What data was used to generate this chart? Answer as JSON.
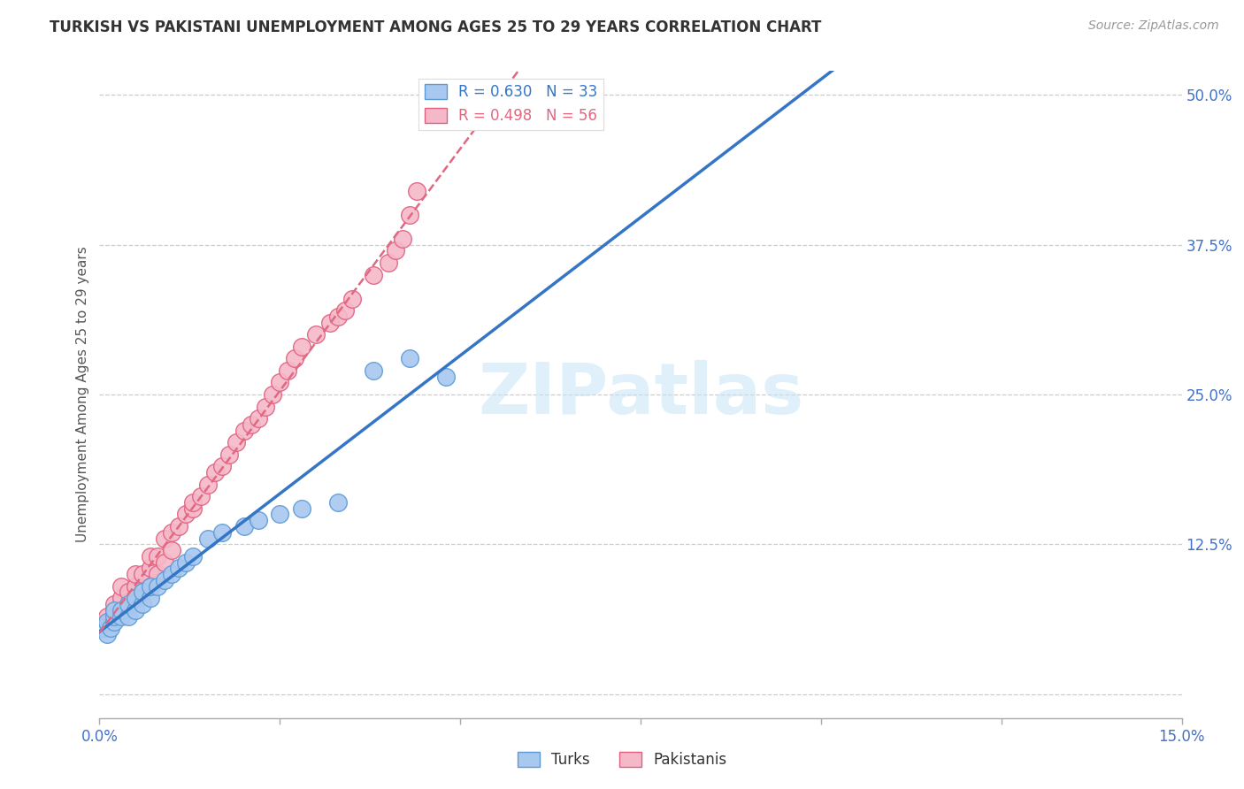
{
  "title": "TURKISH VS PAKISTANI UNEMPLOYMENT AMONG AGES 25 TO 29 YEARS CORRELATION CHART",
  "source": "Source: ZipAtlas.com",
  "ylabel": "Unemployment Among Ages 25 to 29 years",
  "xlim": [
    0.0,
    0.15
  ],
  "ylim": [
    -0.02,
    0.52
  ],
  "turks_color": "#a8c8f0",
  "turks_edge_color": "#5b9bd5",
  "pakistanis_color": "#f5b8c8",
  "pakistanis_edge_color": "#e06080",
  "line_turks_color": "#3575c5",
  "line_pakistanis_color": "#e06880",
  "turks_R": 0.63,
  "turks_N": 33,
  "pakistanis_R": 0.498,
  "pakistanis_N": 56,
  "background_color": "#ffffff",
  "grid_color": "#cccccc",
  "watermark_text": "ZIPatlas",
  "turks_x": [
    0.0005,
    0.001,
    0.001,
    0.0015,
    0.002,
    0.002,
    0.002,
    0.003,
    0.003,
    0.004,
    0.004,
    0.005,
    0.005,
    0.006,
    0.006,
    0.007,
    0.007,
    0.008,
    0.009,
    0.01,
    0.011,
    0.012,
    0.013,
    0.015,
    0.017,
    0.02,
    0.022,
    0.025,
    0.028,
    0.033,
    0.038,
    0.043,
    0.048
  ],
  "turks_y": [
    0.055,
    0.05,
    0.06,
    0.055,
    0.06,
    0.065,
    0.07,
    0.065,
    0.07,
    0.065,
    0.075,
    0.07,
    0.08,
    0.075,
    0.085,
    0.08,
    0.09,
    0.09,
    0.095,
    0.1,
    0.105,
    0.11,
    0.115,
    0.13,
    0.135,
    0.14,
    0.145,
    0.15,
    0.155,
    0.16,
    0.27,
    0.28,
    0.265
  ],
  "pakistanis_x": [
    0.0005,
    0.001,
    0.001,
    0.0015,
    0.002,
    0.002,
    0.002,
    0.003,
    0.003,
    0.003,
    0.004,
    0.004,
    0.005,
    0.005,
    0.005,
    0.006,
    0.006,
    0.007,
    0.007,
    0.007,
    0.008,
    0.008,
    0.009,
    0.009,
    0.01,
    0.01,
    0.011,
    0.012,
    0.013,
    0.013,
    0.014,
    0.015,
    0.016,
    0.017,
    0.018,
    0.019,
    0.02,
    0.021,
    0.022,
    0.023,
    0.024,
    0.025,
    0.026,
    0.027,
    0.028,
    0.03,
    0.032,
    0.033,
    0.034,
    0.035,
    0.038,
    0.04,
    0.041,
    0.042,
    0.043,
    0.044
  ],
  "pakistanis_y": [
    0.055,
    0.06,
    0.065,
    0.06,
    0.065,
    0.07,
    0.075,
    0.07,
    0.08,
    0.09,
    0.075,
    0.085,
    0.08,
    0.09,
    0.1,
    0.085,
    0.1,
    0.09,
    0.105,
    0.115,
    0.1,
    0.115,
    0.11,
    0.13,
    0.12,
    0.135,
    0.14,
    0.15,
    0.155,
    0.16,
    0.165,
    0.175,
    0.185,
    0.19,
    0.2,
    0.21,
    0.22,
    0.225,
    0.23,
    0.24,
    0.25,
    0.26,
    0.27,
    0.28,
    0.29,
    0.3,
    0.31,
    0.315,
    0.32,
    0.33,
    0.35,
    0.36,
    0.37,
    0.38,
    0.4,
    0.42
  ]
}
